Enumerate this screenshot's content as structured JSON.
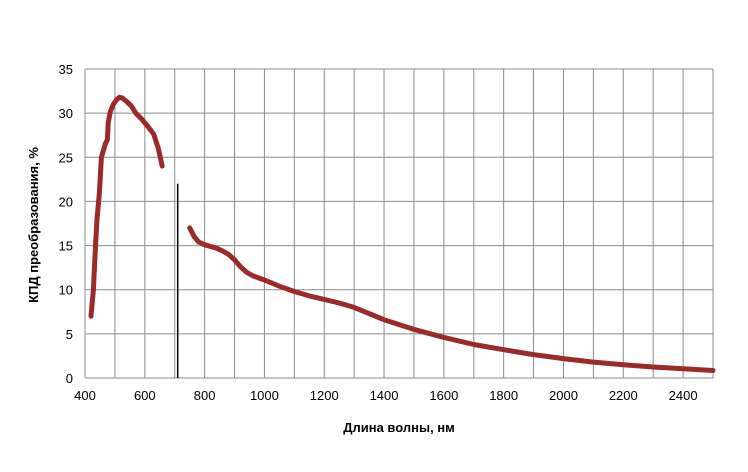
{
  "chart_data": {
    "type": "line",
    "title": "",
    "xlabel": "Длина волны, нм",
    "ylabel": "КПД преобразования, %",
    "xlim": [
      400,
      2500
    ],
    "ylim": [
      0,
      35
    ],
    "xticks": [
      400,
      600,
      800,
      1000,
      1200,
      1400,
      1600,
      1800,
      2000,
      2200,
      2400
    ],
    "yticks": [
      0,
      5,
      10,
      15,
      20,
      25,
      30,
      35
    ],
    "grid": true,
    "legend": "none",
    "series_color": "#9b2b2b",
    "marker_line": {
      "x": 710,
      "y_range": [
        0,
        22
      ],
      "color": "#000000"
    },
    "series": [
      {
        "points": [
          [
            420,
            7
          ],
          [
            428,
            10
          ],
          [
            435,
            15
          ],
          [
            440,
            18
          ],
          [
            448,
            21
          ],
          [
            455,
            25
          ],
          [
            468,
            26.5
          ],
          [
            475,
            27
          ],
          [
            478,
            29
          ],
          [
            485,
            30.2
          ],
          [
            495,
            31
          ],
          [
            505,
            31.5
          ],
          [
            515,
            31.8
          ],
          [
            525,
            31.7
          ],
          [
            540,
            31.3
          ],
          [
            555,
            30.8
          ],
          [
            570,
            30
          ],
          [
            590,
            29.3
          ],
          [
            610,
            28.5
          ],
          [
            630,
            27.6
          ],
          [
            645,
            26
          ],
          [
            658,
            24
          ]
        ]
      },
      {
        "points": [
          [
            750,
            17
          ],
          [
            765,
            16
          ],
          [
            780,
            15.4
          ],
          [
            800,
            15.1
          ],
          [
            820,
            14.9
          ],
          [
            840,
            14.7
          ],
          [
            860,
            14.4
          ],
          [
            880,
            14
          ],
          [
            900,
            13.4
          ],
          [
            920,
            12.6
          ],
          [
            940,
            12
          ],
          [
            960,
            11.6
          ],
          [
            1000,
            11.1
          ],
          [
            1050,
            10.4
          ],
          [
            1100,
            9.8
          ],
          [
            1150,
            9.3
          ],
          [
            1200,
            8.9
          ],
          [
            1250,
            8.5
          ],
          [
            1300,
            8
          ],
          [
            1350,
            7.3
          ],
          [
            1400,
            6.6
          ],
          [
            1500,
            5.5
          ],
          [
            1600,
            4.6
          ],
          [
            1700,
            3.8
          ],
          [
            1800,
            3.2
          ],
          [
            1900,
            2.65
          ],
          [
            2000,
            2.2
          ],
          [
            2100,
            1.8
          ],
          [
            2200,
            1.5
          ],
          [
            2300,
            1.25
          ],
          [
            2400,
            1.05
          ],
          [
            2500,
            0.85
          ]
        ]
      }
    ]
  }
}
